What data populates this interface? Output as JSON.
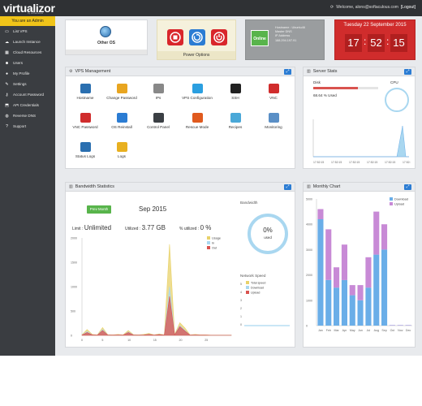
{
  "header": {
    "logo": "virtualizor",
    "logo_sub": "by softaculous",
    "welcome": "Welcome, alons@softaculous.com",
    "logout": "[Logout]"
  },
  "sidebar": {
    "admin_banner": "You are an Admin",
    "items": [
      {
        "label": "List VPS",
        "icon": "monitor-icon"
      },
      {
        "label": "Launch Instance",
        "icon": "cloud-upload-icon"
      },
      {
        "label": "Cloud Resources",
        "icon": "grid-icon"
      },
      {
        "label": "Users",
        "icon": "users-icon"
      },
      {
        "label": "My Profile",
        "icon": "user-icon"
      },
      {
        "label": "Settings",
        "icon": "wrench-icon"
      },
      {
        "label": "Account Password",
        "icon": "key-icon"
      },
      {
        "label": "API Credentials",
        "icon": "tag-icon"
      },
      {
        "label": "Reverse DNS",
        "icon": "globe-icon"
      },
      {
        "label": "Support",
        "icon": "help-icon"
      }
    ]
  },
  "summary": {
    "os_label": "Other OS",
    "power_label": "Power Options",
    "status": "Online",
    "host_lines": [
      "Hostname : Ubuntu46",
      "Master DNS",
      "IP Address",
      "188.294.197.91"
    ],
    "date": "Tuesday 22 September 2015",
    "hours": "17",
    "minutes": "52",
    "seconds": "15"
  },
  "vps_management": {
    "title": "VPS Management",
    "tools": [
      {
        "label": "Hostname",
        "color": "#2a6fb0"
      },
      {
        "label": "Change Password",
        "color": "#e8a520"
      },
      {
        "label": "IPs",
        "color": "#888888"
      },
      {
        "label": "VPS Configuration",
        "color": "#2b9fe0"
      },
      {
        "label": "SSH",
        "color": "#222222"
      },
      {
        "label": "VNC",
        "color": "#d02c2c"
      },
      {
        "label": "VNC Password",
        "color": "#d02c2c"
      },
      {
        "label": "OS Reinstall",
        "color": "#2b7cd3"
      },
      {
        "label": "Control Panel",
        "color": "#3b3f44"
      },
      {
        "label": "Rescue Mode",
        "color": "#e05a1e"
      },
      {
        "label": "Recipes",
        "color": "#4aa8d8"
      },
      {
        "label": "Monitoring",
        "color": "#5a8fc6"
      },
      {
        "label": "Status Logs",
        "color": "#2a6fb0"
      },
      {
        "label": "Logs",
        "color": "#e8b020"
      }
    ]
  },
  "server_stats": {
    "title": "Server Stats",
    "disk_label": "Disk",
    "disk_percent": 68.64,
    "disk_text": "68.64 % Used",
    "cpu_label": "CPU",
    "time_labels": [
      "17:52:15",
      "17:52:15",
      "17:52:15",
      "17:52:15",
      "17:52:15",
      "17:52:15"
    ]
  },
  "bandwidth": {
    "title": "Bandwidth Statistics",
    "prev_button": "Prev Month",
    "month": "Sep 2015",
    "limit_label": "Limit :",
    "limit_value": "Unlimited",
    "utilized_label": "Utilized :",
    "utilized_value": "3.77 GB",
    "percent_label": "% utilized :",
    "percent_value": "0 %",
    "gauge_title": "Bandwidth",
    "gauge_value": "0%",
    "gauge_sub": "used",
    "legend": [
      "Usage",
      "In",
      "Out"
    ],
    "net_title": "Network Speed",
    "net_legend": [
      "Total speed",
      "Download",
      "Upload"
    ],
    "net_ticks": [
      "5",
      "4",
      "3",
      "2",
      "1",
      "0"
    ]
  },
  "chart_data": [
    {
      "type": "area",
      "x": [
        1,
        2,
        3,
        4,
        5,
        6,
        7,
        8,
        9,
        10,
        11,
        12,
        13,
        14,
        15,
        16,
        17,
        18,
        19,
        20,
        21,
        22,
        23,
        24,
        25,
        26,
        27,
        28,
        29,
        30
      ],
      "xticks": [
        "0",
        "5",
        "10",
        "15",
        "20",
        "25"
      ],
      "yticks": [
        "0",
        "500",
        "1000",
        "1500",
        "2000"
      ],
      "ylim": [
        0,
        2000
      ],
      "series": [
        {
          "name": "Usage",
          "color": "#e8d26a",
          "values": [
            10,
            120,
            20,
            10,
            160,
            15,
            10,
            20,
            10,
            100,
            15,
            10,
            20,
            40,
            10,
            30,
            10,
            1870,
            20,
            260,
            150,
            10,
            20,
            10,
            10,
            5,
            5,
            5,
            5,
            5
          ]
        },
        {
          "name": "In",
          "color": "#a9d7f0",
          "values": [
            5,
            80,
            10,
            5,
            120,
            10,
            5,
            10,
            5,
            70,
            10,
            5,
            10,
            25,
            5,
            20,
            5,
            1000,
            10,
            200,
            100,
            5,
            10,
            5,
            5,
            3,
            3,
            3,
            3,
            3
          ]
        },
        {
          "name": "Out",
          "color": "#d9534f",
          "values": [
            5,
            60,
            10,
            5,
            100,
            8,
            5,
            8,
            5,
            60,
            8,
            5,
            8,
            20,
            5,
            15,
            5,
            800,
            10,
            180,
            90,
            5,
            8,
            5,
            5,
            2,
            2,
            2,
            2,
            2
          ]
        }
      ]
    },
    {
      "type": "bar",
      "title": "Monthly Chart",
      "categories": [
        "Jan",
        "Feb",
        "Mar",
        "Apr",
        "May",
        "Jun",
        "Jul",
        "Aug",
        "Sep",
        "Oct",
        "Nov",
        "Dec"
      ],
      "yticks": [
        "0",
        "1000",
        "2000",
        "3000",
        "4000",
        "5000"
      ],
      "ylim": [
        0,
        5000
      ],
      "stacked": true,
      "series": [
        {
          "name": "Download",
          "color": "#6aaee8",
          "values": [
            4200,
            1800,
            1500,
            1800,
            1200,
            1000,
            1500,
            2800,
            3000,
            20,
            20,
            20
          ]
        },
        {
          "name": "Upload",
          "color": "#c88ad6",
          "values": [
            400,
            2000,
            800,
            1400,
            400,
            600,
            1200,
            1700,
            1000,
            0,
            0,
            0
          ]
        }
      ]
    }
  ]
}
